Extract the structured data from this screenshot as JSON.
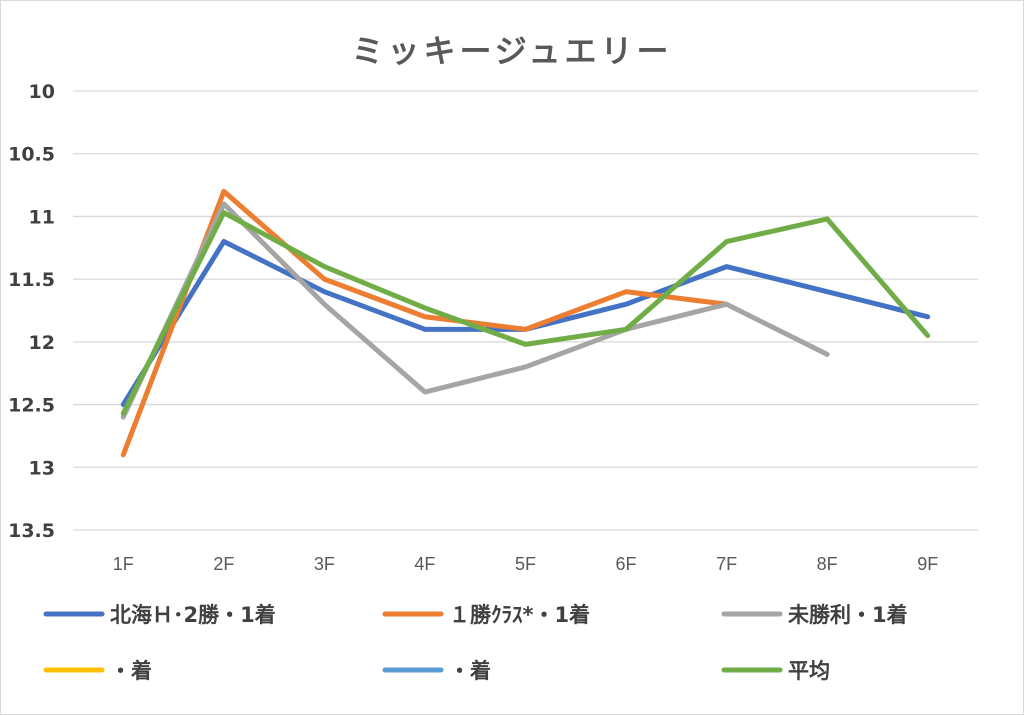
{
  "chart_data": {
    "type": "line",
    "title": "ミッキージュエリー",
    "xlabel": "",
    "ylabel": "",
    "categories": [
      "1F",
      "2F",
      "3F",
      "4F",
      "5F",
      "6F",
      "7F",
      "8F",
      "9F"
    ],
    "yticks": [
      "10",
      "10.5",
      "11",
      "11.5",
      "12",
      "12.5",
      "13",
      "13.5"
    ],
    "ylim": [
      10,
      13.5
    ],
    "y_reversed": true,
    "grid": true,
    "legend_position": "bottom",
    "series": [
      {
        "name": "北海Ｈ･2勝・1着",
        "color": "#4472c4",
        "values": [
          12.5,
          11.2,
          11.6,
          11.9,
          11.9,
          11.7,
          11.4,
          11.6,
          11.8
        ]
      },
      {
        "name": "１勝ｸﾗｽ*・1着",
        "color": "#ed7d31",
        "values": [
          12.9,
          10.8,
          11.5,
          11.8,
          11.9,
          11.6,
          11.7,
          null,
          null
        ]
      },
      {
        "name": "未勝利・1着",
        "color": "#a5a5a5",
        "values": [
          12.6,
          10.9,
          11.7,
          12.4,
          12.2,
          11.9,
          11.7,
          12.1,
          null
        ]
      },
      {
        "name": "・着",
        "color": "#ffc000",
        "values": [
          null,
          null,
          null,
          null,
          null,
          null,
          null,
          null,
          null
        ]
      },
      {
        "name": "・着",
        "color": "#5b9bd5",
        "values": [
          null,
          null,
          null,
          null,
          null,
          null,
          null,
          null,
          null
        ]
      },
      {
        "name": "平均",
        "color": "#70ad47",
        "values": [
          12.57,
          10.97,
          11.4,
          11.73,
          12.02,
          11.9,
          11.2,
          11.02,
          11.95
        ]
      }
    ]
  }
}
